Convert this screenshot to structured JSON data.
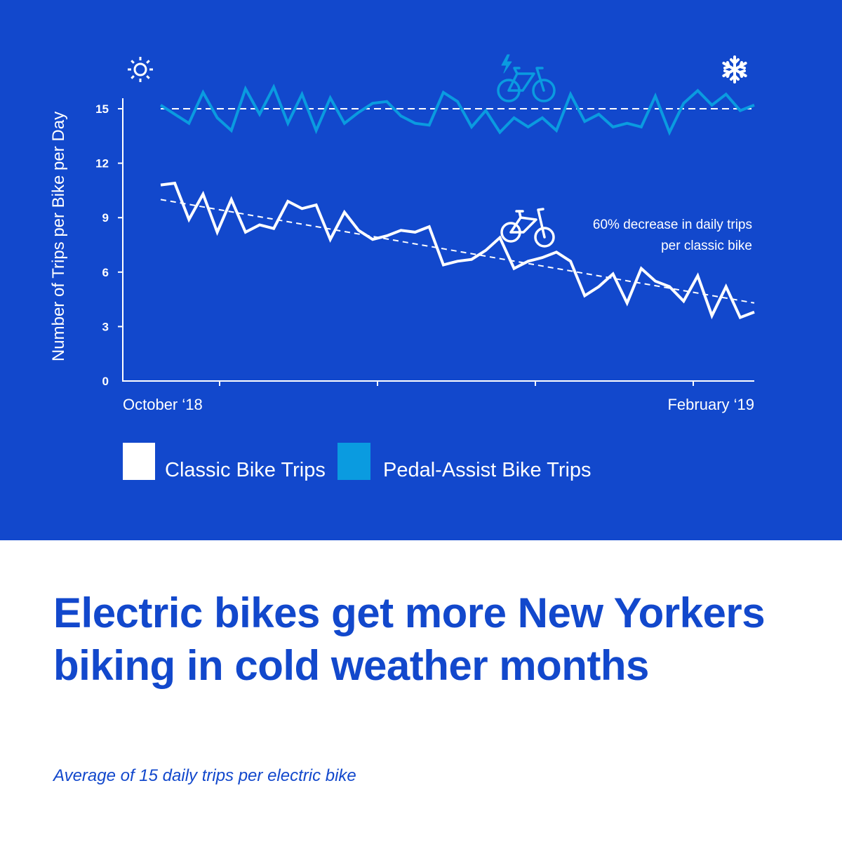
{
  "colors": {
    "background": "#1248cc",
    "classic": "#ffffff",
    "pedal_assist": "#0a9be0",
    "footer_bg": "#ffffff",
    "headline": "#1248cc"
  },
  "icons": {
    "top_left": "sun-icon",
    "top_center": "electric-bike-icon",
    "top_right": "snowflake-icon",
    "classic_marker": "bicycle-icon"
  },
  "chart_data": {
    "type": "line",
    "title": "",
    "xlabel": "",
    "ylabel": "Number of Trips per Bike per Day",
    "ylim": [
      0,
      15
    ],
    "yticks": [
      0,
      3,
      6,
      9,
      12,
      15
    ],
    "x_tick_labels": [
      "October ‘18",
      "February ‘19"
    ],
    "grid": false,
    "legend_placement": "bottom",
    "series": [
      {
        "name": "Classic Bike Trips",
        "color": "#ffffff",
        "values": [
          10.8,
          10.9,
          8.9,
          10.3,
          8.2,
          10.0,
          8.2,
          8.6,
          8.4,
          9.9,
          9.5,
          9.7,
          7.8,
          9.3,
          8.3,
          7.8,
          8.0,
          8.3,
          8.2,
          8.5,
          6.4,
          6.6,
          6.7,
          7.2,
          7.9,
          6.2,
          6.6,
          6.8,
          7.1,
          6.6,
          4.7,
          5.2,
          5.9,
          4.3,
          6.2,
          5.5,
          5.2,
          4.4,
          5.8,
          3.6,
          5.2,
          3.5,
          3.8
        ]
      },
      {
        "name": "Pedal-Assist Bike Trips",
        "color": "#0a9be0",
        "values": [
          15.2,
          14.7,
          14.2,
          15.9,
          14.5,
          13.8,
          16.1,
          14.7,
          16.2,
          14.2,
          15.8,
          13.8,
          15.6,
          14.2,
          14.8,
          15.3,
          15.4,
          14.6,
          14.2,
          14.1,
          15.9,
          15.4,
          14.0,
          14.9,
          13.7,
          14.5,
          14.0,
          14.5,
          13.8,
          15.8,
          14.3,
          14.7,
          14.0,
          14.2,
          14.0,
          15.7,
          13.7,
          15.3,
          16.0,
          15.2,
          15.8,
          14.9,
          15.2
        ]
      }
    ],
    "trendlines": [
      {
        "series": "Classic Bike Trips",
        "style": "dashed",
        "start": 10.0,
        "end": 4.3
      },
      {
        "series": "Pedal-Assist Bike Trips",
        "style": "dashed",
        "start": 15.0,
        "end": 15.0
      }
    ],
    "annotation": [
      "60% decrease in daily trips",
      "per classic bike"
    ],
    "legend": [
      "Classic Bike Trips",
      "Pedal-Assist Bike Trips"
    ]
  },
  "headline": "Electric bikes get more New Yorkers biking in cold weather months",
  "subheadline": "Average of 15 daily trips per electric bike"
}
